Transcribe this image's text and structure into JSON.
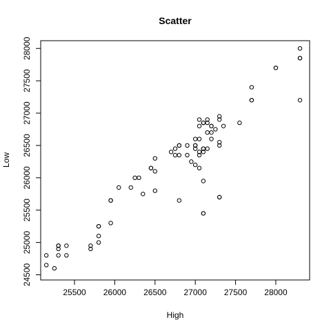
{
  "chart_data": {
    "type": "scatter",
    "title": "Scatter",
    "xlabel": "High",
    "ylabel": "Low",
    "xlim": [
      25080,
      28420
    ],
    "ylim": [
      24420,
      28120
    ],
    "xticks": [
      25500,
      26000,
      26500,
      27000,
      27500,
      28000
    ],
    "yticks": [
      24500,
      25000,
      25500,
      26000,
      26500,
      27000,
      27500,
      28000
    ],
    "grid": false,
    "x": [
      25150,
      25150,
      25250,
      25300,
      25300,
      25300,
      25300,
      25400,
      25400,
      25700,
      25700,
      25800,
      25800,
      25800,
      25800,
      25950,
      25950,
      25950,
      26050,
      26200,
      26250,
      26300,
      26350,
      26450,
      26450,
      26500,
      26500,
      26500,
      26700,
      26750,
      26750,
      26800,
      26800,
      26800,
      26800,
      26900,
      26900,
      26950,
      27000,
      27000,
      27000,
      27000,
      27000,
      27050,
      27050,
      27050,
      27050,
      27050,
      27050,
      27100,
      27100,
      27100,
      27100,
      27100,
      27100,
      27100,
      27100,
      27150,
      27150,
      27150,
      27150,
      27200,
      27200,
      27200,
      27200,
      27250,
      27300,
      27300,
      27300,
      27300,
      27300,
      27300,
      27350,
      27550,
      27700,
      27700,
      27700,
      28000,
      28000,
      28300,
      28300,
      28300,
      28300
    ],
    "y": [
      24650,
      24800,
      24600,
      24800,
      24900,
      24950,
      24950,
      24800,
      24950,
      24900,
      24950,
      25000,
      25100,
      25250,
      25250,
      25300,
      25650,
      25650,
      25850,
      25850,
      26000,
      26000,
      25750,
      26150,
      26150,
      26100,
      26300,
      25800,
      26400,
      26350,
      26450,
      26350,
      26500,
      26500,
      25650,
      26350,
      26500,
      26250,
      26200,
      26450,
      26500,
      26500,
      26600,
      26800,
      26900,
      26600,
      26400,
      26350,
      26150,
      26850,
      26850,
      26450,
      26450,
      26400,
      25950,
      25450,
      25450,
      26700,
      26850,
      26900,
      26450,
      26800,
      26700,
      26600,
      26800,
      26750,
      26950,
      26900,
      26550,
      26500,
      25700,
      25700,
      26800,
      26850,
      27200,
      27200,
      27400,
      27700,
      27700,
      28000,
      27850,
      27850,
      27200
    ]
  }
}
